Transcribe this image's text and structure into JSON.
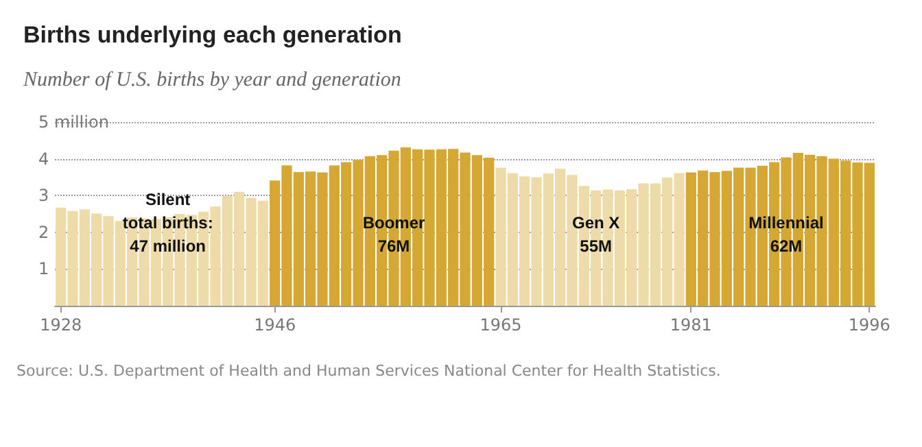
{
  "chart_data": {
    "type": "bar",
    "title": "Births underlying each generation",
    "subtitle": "Number of U.S. births by year and generation",
    "categories": [
      "1928",
      null,
      null,
      null,
      null,
      null,
      null,
      null,
      null,
      null,
      null,
      null,
      null,
      null,
      null,
      null,
      null,
      null,
      "1946",
      null,
      null,
      null,
      null,
      null,
      null,
      null,
      null,
      null,
      null,
      null,
      null,
      null,
      null,
      null,
      null,
      null,
      null,
      "1965",
      null,
      null,
      null,
      null,
      null,
      null,
      null,
      null,
      null,
      null,
      null,
      null,
      null,
      null,
      null,
      "1981",
      null,
      null,
      null,
      null,
      null,
      null,
      null,
      null,
      null,
      null,
      null,
      null,
      null,
      null,
      "1996"
    ],
    "values": [
      2.67,
      2.58,
      2.62,
      2.51,
      2.44,
      2.31,
      2.4,
      2.38,
      2.36,
      2.41,
      2.5,
      2.47,
      2.56,
      2.7,
      2.99,
      3.1,
      2.94,
      2.86,
      3.41,
      3.82,
      3.64,
      3.65,
      3.63,
      3.82,
      3.91,
      3.97,
      4.07,
      4.1,
      4.22,
      4.31,
      4.26,
      4.25,
      4.26,
      4.27,
      4.17,
      4.1,
      4.03,
      3.76,
      3.61,
      3.52,
      3.5,
      3.6,
      3.73,
      3.56,
      3.26,
      3.14,
      3.16,
      3.14,
      3.17,
      3.33,
      3.33,
      3.49,
      3.61,
      3.63,
      3.68,
      3.64,
      3.67,
      3.76,
      3.76,
      3.81,
      3.91,
      4.04,
      4.16,
      4.11,
      4.07,
      4.0,
      3.95,
      3.9,
      3.89
    ],
    "colors": [
      "#eddcaa",
      "#eddcaa",
      "#eddcaa",
      "#eddcaa",
      "#eddcaa",
      "#eddcaa",
      "#eddcaa",
      "#eddcaa",
      "#eddcaa",
      "#eddcaa",
      "#eddcaa",
      "#eddcaa",
      "#eddcaa",
      "#eddcaa",
      "#eddcaa",
      "#eddcaa",
      "#eddcaa",
      "#eddcaa",
      "#d4a832",
      "#d4a832",
      "#d4a832",
      "#d4a832",
      "#d4a832",
      "#d4a832",
      "#d4a832",
      "#d4a832",
      "#d4a832",
      "#d4a832",
      "#d4a832",
      "#d4a832",
      "#d4a832",
      "#d4a832",
      "#d4a832",
      "#d4a832",
      "#d4a832",
      "#d4a832",
      "#d4a832",
      "#eddcaa",
      "#eddcaa",
      "#eddcaa",
      "#eddcaa",
      "#eddcaa",
      "#eddcaa",
      "#eddcaa",
      "#eddcaa",
      "#eddcaa",
      "#eddcaa",
      "#eddcaa",
      "#eddcaa",
      "#eddcaa",
      "#eddcaa",
      "#eddcaa",
      "#eddcaa",
      "#d4a832",
      "#d4a832",
      "#d4a832",
      "#d4a832",
      "#d4a832",
      "#d4a832",
      "#d4a832",
      "#d4a832",
      "#d4a832",
      "#d4a832",
      "#d4a832",
      "#d4a832",
      "#d4a832",
      "#d4a832",
      "#d4a832",
      "#d4a832"
    ],
    "ylim": [
      0,
      5
    ],
    "yticks": [
      1,
      2,
      3,
      4,
      {
        "value": 5,
        "label": "5 million"
      }
    ],
    "grid": "y",
    "annotations": [
      "Silent\ntotal births:\n47 million",
      "Boomer\n76M",
      "Gen X\n55M",
      "Millennial\n62M",
      "Source: U.S. Department of Health and Human Services National Center for Health Statistics."
    ]
  }
}
